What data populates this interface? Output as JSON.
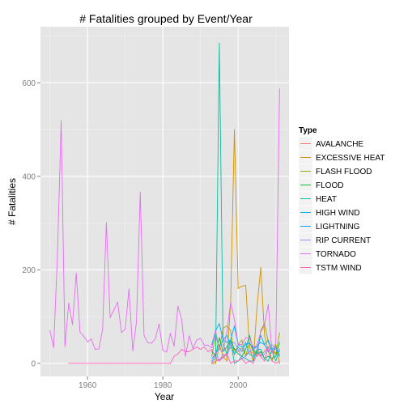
{
  "chart_data": {
    "type": "line",
    "title": "# Fatalities grouped by Event/Year",
    "xlabel": "Year",
    "ylabel": "# Fatalities",
    "xlim": [
      1947.5,
      2013.5
    ],
    "ylim": [
      -28,
      720
    ],
    "x_ticks": [
      1960,
      1980,
      2000
    ],
    "y_ticks": [
      0,
      200,
      400,
      600
    ],
    "grid": true,
    "legend": {
      "title": "Type",
      "position": "right"
    },
    "colors": {
      "panel_background": "#e5e5e5",
      "major_grid": "#ffffff",
      "minor_grid": "#f2f2f2",
      "legend_key_background": "#f2f2f2"
    },
    "series": [
      {
        "name": "AVALANCHE",
        "color": "#f8766d",
        "x": [
          1993,
          1994,
          1995,
          1996,
          1997,
          1998,
          1999,
          2000,
          2001,
          2002,
          2003,
          2004,
          2005,
          2006,
          2007,
          2008,
          2009,
          2010,
          2011
        ],
        "y": [
          1,
          5,
          8,
          14,
          22,
          34,
          32,
          25,
          33,
          18,
          25,
          22,
          23,
          17,
          26,
          35,
          28,
          21,
          20
        ]
      },
      {
        "name": "EXCESSIVE HEAT",
        "color": "#d39200",
        "x": [
          1993,
          1994,
          1995,
          1996,
          1997,
          1998,
          1999,
          2000,
          2001,
          2002,
          2003,
          2004,
          2005,
          2006,
          2007,
          2008,
          2009,
          2010,
          2011
        ],
        "y": [
          0,
          0,
          40,
          15,
          5,
          130,
          500,
          160,
          165,
          167,
          35,
          5,
          120,
          205,
          60,
          25,
          5,
          40,
          0
        ]
      },
      {
        "name": "FLASH FLOOD",
        "color": "#93aa00",
        "x": [
          1993,
          1994,
          1995,
          1996,
          1997,
          1998,
          1999,
          2000,
          2001,
          2002,
          2003,
          2004,
          2005,
          2006,
          2007,
          2008,
          2009,
          2010,
          2011
        ],
        "y": [
          15,
          60,
          30,
          75,
          80,
          70,
          18,
          40,
          50,
          15,
          45,
          25,
          15,
          70,
          85,
          45,
          30,
          20,
          65
        ]
      },
      {
        "name": "FLOOD",
        "color": "#00ba38",
        "x": [
          1993,
          1994,
          1995,
          1996,
          1997,
          1998,
          1999,
          2000,
          2001,
          2002,
          2003,
          2004,
          2005,
          2006,
          2007,
          2008,
          2009,
          2010,
          2011
        ],
        "y": [
          25,
          15,
          55,
          25,
          35,
          50,
          30,
          20,
          15,
          30,
          60,
          30,
          20,
          25,
          10,
          15,
          10,
          15,
          45
        ]
      },
      {
        "name": "HEAT",
        "color": "#00c19f",
        "x": [
          1993,
          1994,
          1995,
          1996,
          1997,
          1998,
          1999,
          2000,
          2001,
          2002,
          2003,
          2004,
          2005,
          2006,
          2007,
          2008,
          2009,
          2010,
          2011
        ],
        "y": [
          5,
          10,
          685,
          40,
          20,
          50,
          0,
          5,
          15,
          10,
          5,
          5,
          30,
          30,
          10,
          5,
          30,
          5,
          30
        ]
      },
      {
        "name": "HIGH WIND",
        "color": "#00b9e3",
        "x": [
          1993,
          1994,
          1995,
          1996,
          1997,
          1998,
          1999,
          2000,
          2001,
          2002,
          2003,
          2004,
          2005,
          2006,
          2007,
          2008,
          2009,
          2010,
          2011
        ],
        "y": [
          10,
          20,
          35,
          50,
          60,
          40,
          20,
          35,
          25,
          45,
          20,
          15,
          25,
          60,
          40,
          50,
          25,
          35,
          15
        ]
      },
      {
        "name": "LIGHTNING",
        "color": "#00a9ff",
        "x": [
          1993,
          1994,
          1995,
          1996,
          1997,
          1998,
          1999,
          2000,
          2001,
          2002,
          2003,
          2004,
          2005,
          2006,
          2007,
          2008,
          2009,
          2010,
          2011
        ],
        "y": [
          40,
          70,
          85,
          50,
          45,
          50,
          80,
          40,
          35,
          40,
          44,
          30,
          38,
          45,
          40,
          25,
          33,
          30,
          25
        ]
      },
      {
        "name": "RIP CURRENT",
        "color": "#9590ff",
        "x": [
          1993,
          1994,
          1995,
          1996,
          1997,
          1998,
          1999,
          2000,
          2001,
          2002,
          2003,
          2004,
          2005,
          2006,
          2007,
          2008,
          2009,
          2010,
          2011
        ],
        "y": [
          0,
          25,
          5,
          20,
          15,
          40,
          45,
          30,
          10,
          15,
          25,
          30,
          35,
          15,
          20,
          35,
          40,
          30,
          25
        ]
      },
      {
        "name": "TORNADO",
        "color": "#e76bf3",
        "x": [
          1950,
          1951,
          1952,
          1953,
          1954,
          1955,
          1956,
          1957,
          1958,
          1959,
          1960,
          1961,
          1962,
          1963,
          1964,
          1965,
          1966,
          1967,
          1968,
          1969,
          1970,
          1971,
          1972,
          1973,
          1974,
          1975,
          1976,
          1977,
          1978,
          1979,
          1980,
          1981,
          1982,
          1983,
          1984,
          1985,
          1986,
          1987,
          1988,
          1989,
          1990,
          1991,
          1992,
          1993,
          1994,
          1995,
          1996,
          1997,
          1998,
          1999,
          2000,
          2001,
          2002,
          2003,
          2004,
          2005,
          2006,
          2007,
          2008,
          2009,
          2010,
          2011
        ],
        "y": [
          70,
          34,
          230,
          519,
          36,
          129,
          83,
          193,
          67,
          58,
          46,
          52,
          30,
          31,
          73,
          301,
          98,
          114,
          131,
          66,
          73,
          159,
          27,
          89,
          366,
          60,
          44,
          43,
          53,
          84,
          28,
          24,
          64,
          37,
          122,
          94,
          15,
          59,
          32,
          50,
          53,
          39,
          39,
          33,
          69,
          30,
          25,
          67,
          130,
          94,
          41,
          40,
          55,
          54,
          35,
          38,
          67,
          81,
          126,
          21,
          45,
          587
        ]
      },
      {
        "name": "TSTM WIND",
        "color": "#ff62bc",
        "x": [
          1955,
          1960,
          1965,
          1970,
          1975,
          1980,
          1982,
          1983,
          1984,
          1985,
          1986,
          1987,
          1988,
          1989,
          1990,
          1991,
          1992,
          1993,
          1994,
          1995,
          1996,
          1997,
          1998,
          1999,
          2000,
          2001,
          2002,
          2003,
          2004,
          2005,
          2006,
          2007,
          2008,
          2009,
          2010,
          2011
        ],
        "y": [
          0,
          0,
          0,
          0,
          0,
          0,
          0,
          15,
          20,
          30,
          25,
          25,
          30,
          35,
          30,
          35,
          25,
          30,
          10,
          5,
          12,
          20,
          0,
          5,
          5,
          10,
          0,
          5,
          0,
          20,
          15,
          5,
          35,
          5,
          0,
          5
        ]
      }
    ]
  }
}
